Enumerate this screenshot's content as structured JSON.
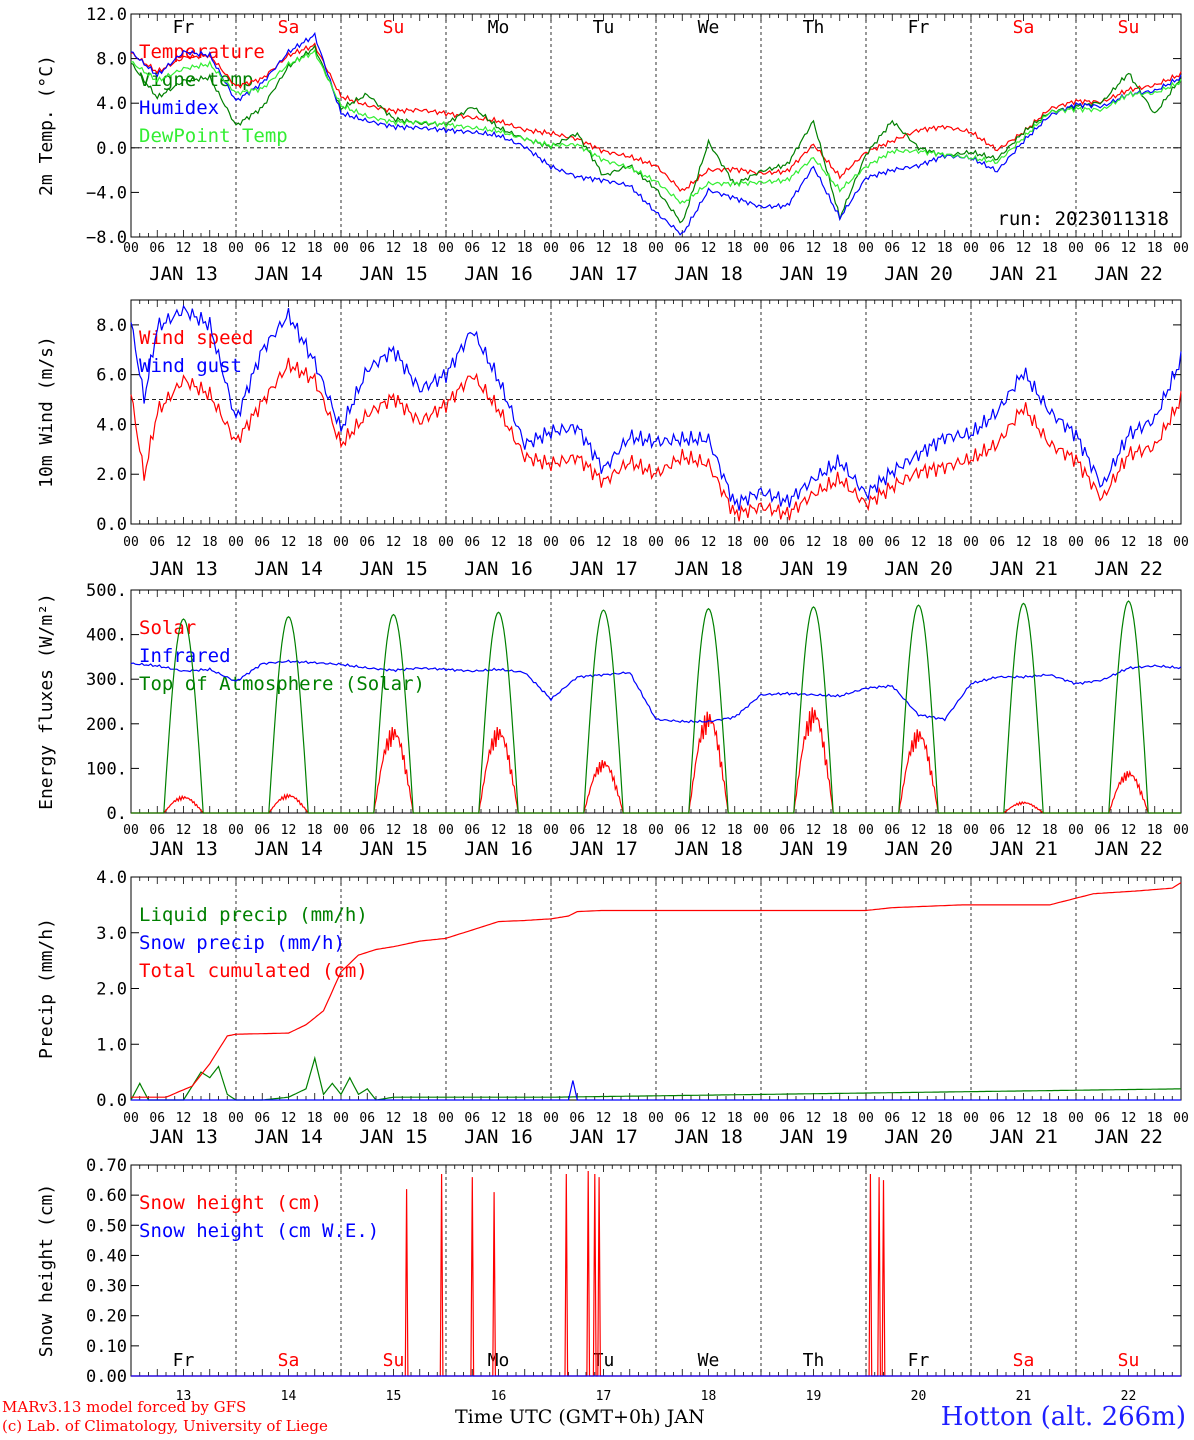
{
  "station": "Hotton (alt. 266m)",
  "credit_line1": "MARv3.13 model forced by GFS",
  "credit_line2": "(c) Lab. of Climatology, University of Liege",
  "bottom_xlabel": "Time UTC (GMT+0h) JAN",
  "run_label": "run: 2023011318",
  "days": [
    {
      "name": "Fr",
      "date": "JAN 13",
      "num": "13",
      "weekend": false
    },
    {
      "name": "Sa",
      "date": "JAN 14",
      "num": "14",
      "weekend": true
    },
    {
      "name": "Su",
      "date": "JAN 15",
      "num": "15",
      "weekend": true
    },
    {
      "name": "Mo",
      "date": "JAN 16",
      "num": "16",
      "weekend": false
    },
    {
      "name": "Tu",
      "date": "JAN 17",
      "num": "17",
      "weekend": false
    },
    {
      "name": "We",
      "date": "JAN 18",
      "num": "18",
      "weekend": false
    },
    {
      "name": "Th",
      "date": "JAN 19",
      "num": "19",
      "weekend": false
    },
    {
      "name": "Fr",
      "date": "JAN 20",
      "num": "20",
      "weekend": false
    },
    {
      "name": "Sa",
      "date": "JAN 21",
      "num": "21",
      "weekend": true
    },
    {
      "name": "Su",
      "date": "JAN 22",
      "num": "22",
      "weekend": true
    }
  ],
  "hour_labels": [
    "00",
    "06",
    "12",
    "18"
  ],
  "colors": {
    "red": "#ff0000",
    "blue": "#0000ff",
    "green": "#008000",
    "lightgreen": "#33ee33",
    "weekend": "#ff0000",
    "weekday": "#000000"
  },
  "chart_data": [
    {
      "type": "line",
      "ylabel": "2m Temp. (°C)",
      "ylim": [
        -8,
        12
      ],
      "yticks": [
        -8,
        -4,
        0,
        4,
        8,
        12
      ],
      "ytick_labels": [
        "−8.0",
        "−4.0",
        "0.0",
        "4.0",
        "8.0",
        "12.0"
      ],
      "ref_line": 0,
      "x_unit": "hours since Jan 13 00 UTC",
      "series": [
        {
          "name": "Temperature",
          "color": "#ff0000",
          "x": [
            0,
            6,
            12,
            18,
            24,
            30,
            36,
            42,
            48,
            54,
            60,
            66,
            72,
            78,
            84,
            90,
            96,
            102,
            108,
            114,
            120,
            126,
            132,
            138,
            144,
            150,
            156,
            162,
            168,
            174,
            180,
            186,
            192,
            198,
            204,
            210,
            216,
            222,
            228,
            234,
            240
          ],
          "y": [
            8.5,
            6.8,
            8.1,
            8.3,
            5.5,
            6.2,
            8.3,
            9.2,
            4.6,
            3.8,
            3.3,
            3.4,
            3.1,
            2.7,
            2.4,
            1.6,
            1.3,
            0.8,
            -0.3,
            -0.8,
            -1.6,
            -3.9,
            -2.0,
            -1.9,
            -2.3,
            -2.1,
            0.3,
            -2.6,
            -0.4,
            0.6,
            1.6,
            1.9,
            1.4,
            -0.2,
            1.4,
            3.5,
            4.2,
            4.1,
            5.2,
            5.6,
            6.6
          ]
        },
        {
          "name": "Vigne temp",
          "color": "#008000",
          "x": [
            0,
            6,
            12,
            18,
            24,
            30,
            36,
            42,
            48,
            54,
            60,
            66,
            72,
            78,
            84,
            90,
            96,
            102,
            108,
            114,
            120,
            126,
            132,
            138,
            144,
            150,
            156,
            162,
            168,
            174,
            180,
            186,
            192,
            198,
            204,
            210,
            216,
            222,
            228,
            234,
            240
          ],
          "y": [
            7.6,
            4.5,
            6.0,
            6.3,
            2.0,
            3.6,
            7.3,
            9.0,
            3.5,
            4.8,
            2.6,
            2.2,
            2.1,
            3.7,
            1.8,
            0.8,
            0.1,
            1.3,
            -2.5,
            -1.6,
            -3.7,
            -6.8,
            0.5,
            -3.3,
            -2.1,
            -1.5,
            2.4,
            -6.3,
            -0.6,
            2.4,
            0.0,
            -0.7,
            -0.4,
            -1.0,
            1.4,
            3.2,
            3.7,
            4.1,
            6.7,
            3.0,
            6.3
          ]
        },
        {
          "name": "Humidex",
          "color": "#0000ff",
          "x": [
            0,
            6,
            12,
            18,
            24,
            30,
            36,
            42,
            48,
            54,
            60,
            66,
            72,
            78,
            84,
            90,
            96,
            102,
            108,
            114,
            120,
            126,
            132,
            138,
            144,
            150,
            156,
            162,
            168,
            174,
            180,
            186,
            192,
            198,
            204,
            210,
            216,
            222,
            228,
            234,
            240
          ],
          "y": [
            8.6,
            6.5,
            8.6,
            8.3,
            4.2,
            5.8,
            8.6,
            10.1,
            3.1,
            2.4,
            1.9,
            1.8,
            1.6,
            1.4,
            1.1,
            0.1,
            -1.7,
            -2.6,
            -2.9,
            -3.4,
            -5.8,
            -7.8,
            -3.8,
            -4.5,
            -5.3,
            -5.2,
            -1.7,
            -6.3,
            -2.7,
            -2.0,
            -1.6,
            -0.7,
            -0.9,
            -2.1,
            0.6,
            2.9,
            3.9,
            3.7,
            4.8,
            5.1,
            6.3
          ]
        },
        {
          "name": "DewPoint Temp",
          "color": "#33ee33",
          "x": [
            0,
            6,
            12,
            18,
            24,
            30,
            36,
            42,
            48,
            54,
            60,
            66,
            72,
            78,
            84,
            90,
            96,
            102,
            108,
            114,
            120,
            126,
            132,
            138,
            144,
            150,
            156,
            162,
            168,
            174,
            180,
            186,
            192,
            198,
            204,
            210,
            216,
            222,
            228,
            234,
            240
          ],
          "y": [
            7.7,
            6.0,
            7.1,
            7.5,
            4.9,
            5.3,
            7.5,
            8.6,
            3.8,
            2.8,
            2.3,
            2.3,
            2.1,
            1.8,
            1.5,
            0.8,
            0.2,
            0.3,
            -1.1,
            -1.8,
            -3.0,
            -5.0,
            -3.2,
            -3.2,
            -3.1,
            -2.9,
            -0.9,
            -3.8,
            -1.7,
            -0.3,
            -0.3,
            -0.6,
            -0.9,
            -1.3,
            0.9,
            3.2,
            3.5,
            3.4,
            4.8,
            4.9,
            5.9
          ]
        }
      ]
    },
    {
      "type": "line",
      "ylabel": "10m Wind (m/s)",
      "ylim": [
        0,
        9
      ],
      "yticks": [
        0,
        2,
        4,
        6,
        8
      ],
      "ytick_labels": [
        "0.0",
        "2.0",
        "4.0",
        "6.0",
        "8.0"
      ],
      "ref_line": 5,
      "series": [
        {
          "name": "Wind speed",
          "color": "#ff0000",
          "x": [
            0,
            3,
            6,
            12,
            18,
            24,
            30,
            36,
            42,
            48,
            54,
            60,
            66,
            72,
            78,
            84,
            90,
            96,
            102,
            108,
            114,
            120,
            126,
            132,
            138,
            144,
            150,
            156,
            162,
            168,
            174,
            180,
            186,
            192,
            198,
            204,
            210,
            216,
            222,
            228,
            234,
            240
          ],
          "y": [
            5.2,
            1.9,
            4.5,
            5.8,
            5.2,
            3.3,
            4.9,
            6.4,
            5.8,
            3.2,
            4.4,
            5.1,
            4.1,
            4.8,
            6.0,
            4.6,
            2.7,
            2.4,
            2.7,
            1.7,
            2.5,
            2.0,
            2.7,
            2.4,
            0.4,
            0.7,
            0.4,
            1.2,
            1.8,
            0.8,
            1.5,
            2.1,
            2.3,
            2.6,
            3.2,
            4.7,
            3.2,
            2.6,
            1.0,
            2.8,
            3.1,
            5.0
          ]
        },
        {
          "name": "Wind gust",
          "color": "#0000ff",
          "x": [
            0,
            3,
            6,
            12,
            18,
            24,
            30,
            36,
            42,
            48,
            54,
            60,
            66,
            72,
            78,
            84,
            90,
            96,
            102,
            108,
            114,
            120,
            126,
            132,
            138,
            144,
            150,
            156,
            162,
            168,
            174,
            180,
            186,
            192,
            198,
            204,
            210,
            216,
            222,
            228,
            234,
            240
          ],
          "y": [
            8.1,
            5.0,
            7.9,
            8.6,
            8.0,
            4.2,
            7.0,
            8.4,
            6.5,
            3.8,
            6.2,
            7.0,
            5.4,
            6.0,
            7.8,
            5.8,
            3.2,
            3.7,
            3.9,
            2.2,
            3.5,
            3.3,
            3.4,
            3.4,
            0.8,
            1.3,
            0.9,
            1.8,
            2.5,
            1.2,
            2.1,
            2.8,
            3.5,
            3.6,
            4.5,
            6.1,
            4.5,
            3.6,
            1.5,
            3.6,
            4.2,
            6.6
          ]
        }
      ]
    },
    {
      "type": "line",
      "ylabel": "Energy fluxes (W/m²)",
      "ylim": [
        0,
        500
      ],
      "yticks": [
        0,
        100,
        200,
        300,
        400,
        500
      ],
      "ytick_labels": [
        "0.",
        "100.",
        "200.",
        "300.",
        "400.",
        "500."
      ],
      "series": [
        {
          "name": "Solar",
          "color": "#ff0000",
          "daily_peaks": [
            38,
            42,
            195,
            195,
            120,
            230,
            240,
            190,
            25,
            95
          ]
        },
        {
          "name": "Infrared",
          "color": "#0000ff",
          "x": [
            0,
            6,
            12,
            18,
            24,
            30,
            36,
            42,
            48,
            54,
            60,
            66,
            72,
            78,
            84,
            90,
            96,
            102,
            108,
            114,
            120,
            126,
            132,
            138,
            144,
            150,
            156,
            162,
            168,
            174,
            180,
            186,
            192,
            198,
            204,
            210,
            216,
            222,
            228,
            234,
            240
          ],
          "y": [
            335,
            330,
            318,
            322,
            295,
            335,
            340,
            337,
            333,
            325,
            320,
            325,
            322,
            318,
            322,
            315,
            255,
            305,
            310,
            315,
            210,
            205,
            205,
            215,
            265,
            268,
            265,
            262,
            280,
            285,
            220,
            210,
            290,
            305,
            305,
            310,
            290,
            298,
            325,
            330,
            325
          ]
        },
        {
          "name": "Top of Atmosphere (Solar)",
          "color": "#008000",
          "daily_peaks": [
            435,
            440,
            445,
            450,
            455,
            458,
            462,
            466,
            470,
            475
          ]
        }
      ]
    },
    {
      "type": "line",
      "ylabel": "Precip (mm/h)",
      "ylim": [
        0,
        4
      ],
      "yticks": [
        0,
        1,
        2,
        3,
        4
      ],
      "ytick_labels": [
        "0.0",
        "1.0",
        "2.0",
        "3.0",
        "4.0"
      ],
      "series": [
        {
          "name": "Liquid precip (mm/h)",
          "color": "#008000",
          "x": [
            0,
            2,
            4,
            8,
            12,
            16,
            18,
            20,
            22,
            24,
            30,
            36,
            40,
            42,
            44,
            46,
            48,
            50,
            52,
            54,
            56,
            60,
            72,
            96,
            240
          ],
          "y": [
            0.0,
            0.3,
            0.0,
            0.0,
            0.0,
            0.5,
            0.4,
            0.6,
            0.1,
            0.0,
            0.0,
            0.05,
            0.2,
            0.75,
            0.1,
            0.3,
            0.1,
            0.4,
            0.1,
            0.2,
            0.0,
            0.05,
            0.05,
            0.05,
            0.2
          ]
        },
        {
          "name": "Snow precip (mm/h)",
          "color": "#0000ff",
          "x": [
            0,
            96,
            100,
            101,
            102,
            104,
            240
          ],
          "y": [
            0,
            0,
            0,
            0.35,
            0,
            0,
            0
          ]
        },
        {
          "name": "Total cumulated (cm)",
          "color": "#ff0000",
          "x": [
            0,
            8,
            14,
            18,
            22,
            24,
            36,
            40,
            44,
            48,
            52,
            56,
            60,
            66,
            72,
            78,
            84,
            90,
            96,
            100,
            102,
            108,
            120,
            144,
            168,
            174,
            190,
            210,
            220,
            230,
            238,
            240
          ],
          "y": [
            0.05,
            0.05,
            0.25,
            0.65,
            1.15,
            1.18,
            1.2,
            1.35,
            1.6,
            2.3,
            2.6,
            2.7,
            2.75,
            2.85,
            2.9,
            3.05,
            3.2,
            3.22,
            3.25,
            3.3,
            3.38,
            3.4,
            3.4,
            3.4,
            3.4,
            3.45,
            3.5,
            3.5,
            3.7,
            3.75,
            3.8,
            3.9
          ]
        }
      ]
    },
    {
      "type": "line",
      "ylabel": "Snow height (cm)",
      "ylim": [
        0,
        0.7
      ],
      "yticks": [
        0,
        0.1,
        0.2,
        0.3,
        0.4,
        0.5,
        0.6,
        0.7
      ],
      "ytick_labels": [
        "0.00",
        "0.10",
        "0.20",
        "0.30",
        "0.40",
        "0.50",
        "0.60",
        "0.70"
      ],
      "series": [
        {
          "name": "Snow height (cm)",
          "color": "#ff0000",
          "spikes": [
            [
              63,
              0.62
            ],
            [
              71,
              0.67
            ],
            [
              78,
              0.66
            ],
            [
              83,
              0.61
            ],
            [
              99.5,
              0.67
            ],
            [
              104.5,
              0.68
            ],
            [
              106,
              0.67
            ],
            [
              107,
              0.66
            ],
            [
              169,
              0.67
            ],
            [
              171,
              0.66
            ],
            [
              172,
              0.65
            ]
          ]
        },
        {
          "name": "Snow height (cm W.E.)",
          "color": "#0000ff",
          "spikes": []
        }
      ]
    }
  ]
}
